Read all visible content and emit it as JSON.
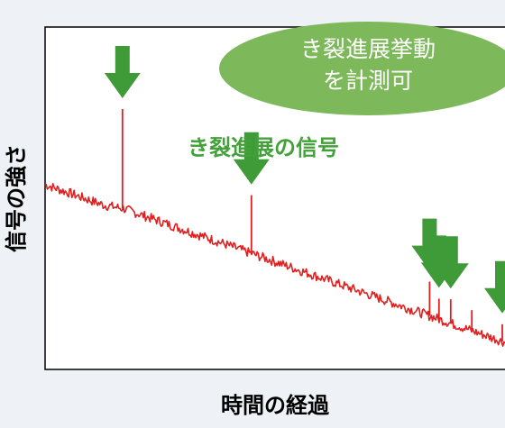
{
  "chart_data": {
    "type": "line",
    "xlabel": "時間の経過",
    "ylabel": "信号の強さ",
    "grid": false,
    "legend": "none",
    "colors": {
      "signal": "#e0201f",
      "arrow": "#3f9a38",
      "callout_fill": "#7db85a",
      "callout_text": "#ffffff",
      "annotation_text": "#43a13a",
      "plot_border": "#000000",
      "plot_background": "#ffffff"
    },
    "series": [
      {
        "values": [
          0.54,
          0.52,
          0.5,
          0.48,
          0.47,
          0.45,
          0.43,
          0.41,
          0.39,
          0.37,
          0.35,
          0.33,
          0.31,
          0.29,
          0.27,
          0.25,
          0.23,
          0.21,
          0.19,
          0.17,
          0.15,
          0.13,
          0.11,
          0.09,
          0.07
        ]
      }
    ],
    "spikes": [
      {
        "x": 0.165,
        "height": 0.29
      },
      {
        "x": 0.44,
        "height": 0.17
      },
      {
        "x": 0.82,
        "height": 0.1
      },
      {
        "x": 0.84,
        "height": 0.06
      },
      {
        "x": 0.865,
        "height": 0.07
      },
      {
        "x": 0.91,
        "height": 0.06
      },
      {
        "x": 0.975,
        "height": 0.05
      }
    ],
    "annotations": {
      "callout_line1": "き裂進展挙動",
      "callout_line2": "を計測可",
      "crack_signal_label": "き裂進展の信号"
    },
    "arrows": [
      {
        "name": "arrow-1",
        "target_spike": 0
      },
      {
        "name": "arrow-2",
        "target_spike": 1
      },
      {
        "name": "arrow-3",
        "target_spike": 2
      },
      {
        "name": "arrow-4",
        "target_spike": 3
      },
      {
        "name": "arrow-5",
        "target_spike": 4
      },
      {
        "name": "arrow-6",
        "target_spike": 6
      }
    ]
  }
}
